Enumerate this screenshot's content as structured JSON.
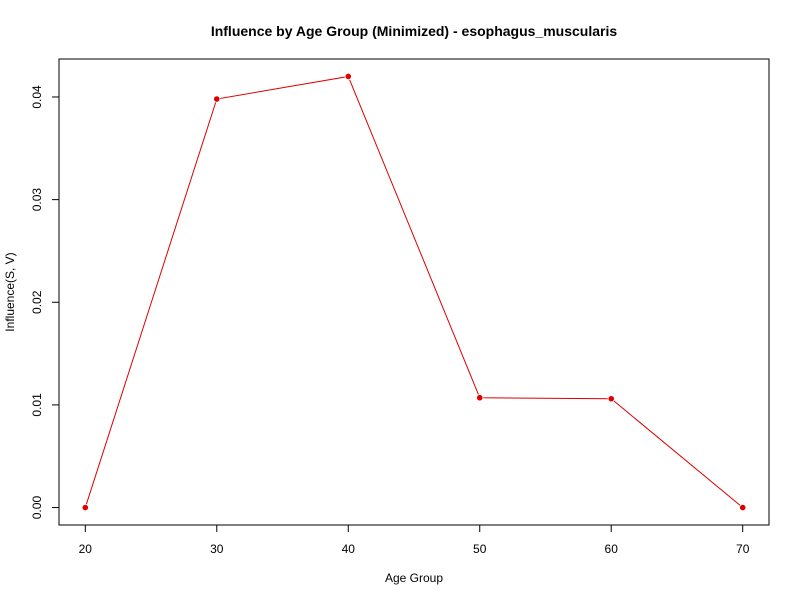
{
  "chart_data": {
    "type": "line",
    "title": "Influence by Age Group (Minimized) - esophagus_muscularis",
    "xlabel": "Age Group",
    "ylabel": "Influence(S, V)",
    "x": [
      20,
      30,
      40,
      50,
      60,
      70
    ],
    "series": [
      {
        "values": [
          0.0,
          0.0398,
          0.042,
          0.0107,
          0.0106,
          0.0
        ]
      }
    ],
    "xticks": [
      "20",
      "30",
      "40",
      "50",
      "60",
      "70"
    ],
    "yticks": [
      "0.00",
      "0.01",
      "0.02",
      "0.03",
      "0.04"
    ],
    "xlim": [
      18,
      72
    ],
    "ylim": [
      -0.0017,
      0.0437
    ],
    "grid": false,
    "legend": "none",
    "colors": {
      "series": "#dd0000",
      "point": "#dd0000",
      "axis": "#000000"
    }
  }
}
